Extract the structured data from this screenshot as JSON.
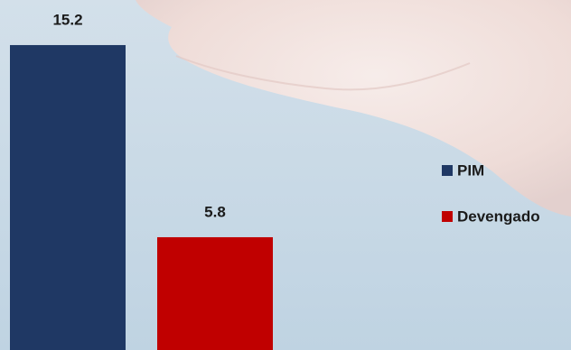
{
  "chart_data": {
    "type": "bar",
    "categories": [
      null
    ],
    "series": [
      {
        "name": "PIM",
        "color": "#1f3864",
        "values": [
          15.2
        ]
      },
      {
        "name": "Devengado",
        "color": "#c00000",
        "values": [
          5.8
        ]
      }
    ]
  }
}
